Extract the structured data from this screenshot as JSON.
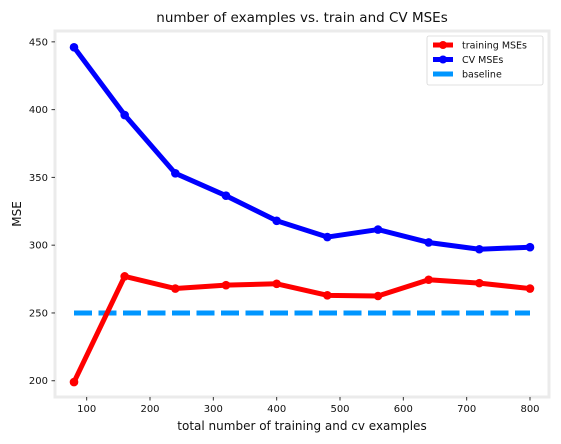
{
  "chart_data": {
    "type": "line",
    "title": "number of examples vs. train and CV MSEs",
    "xlabel": "total number of training and cv examples",
    "ylabel": "MSE",
    "xlim": [
      50,
      830
    ],
    "ylim": [
      188,
      458
    ],
    "xticks": [
      100,
      200,
      300,
      400,
      500,
      600,
      700,
      800
    ],
    "yticks": [
      200,
      250,
      300,
      350,
      400,
      450
    ],
    "grid": false,
    "legend_position": "top-right",
    "x": [
      80,
      160,
      240,
      320,
      400,
      480,
      560,
      640,
      720,
      800
    ],
    "series": [
      {
        "name": "training MSEs",
        "color": "#ff0000",
        "style": "line-with-markers",
        "values": [
          199,
          277,
          268,
          270.5,
          271.5,
          263,
          262.5,
          274.5,
          272,
          268
        ]
      },
      {
        "name": "CV MSEs",
        "color": "#0000ff",
        "style": "line-with-markers",
        "values": [
          446,
          396,
          353,
          336.5,
          318,
          306,
          311.5,
          302,
          297,
          298.5
        ]
      },
      {
        "name": "baseline",
        "color": "#0096ff",
        "style": "dashed",
        "x": [
          80,
          800
        ],
        "values": [
          250,
          250
        ]
      }
    ]
  }
}
